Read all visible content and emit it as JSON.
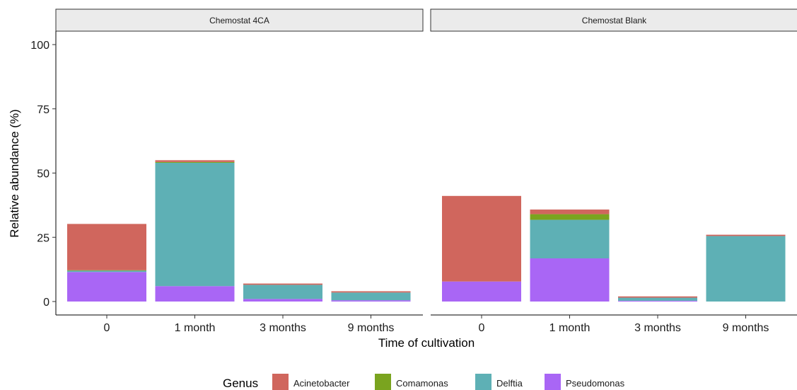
{
  "chart_data": {
    "type": "bar",
    "stacked": true,
    "xlabel": "Time of cultivation",
    "ylabel": "Relative abundance (%)",
    "ylim": [
      0,
      100
    ],
    "yticks": [
      0,
      25,
      50,
      75,
      100
    ],
    "grid": false,
    "legend_placement": "bottom",
    "legend_title": "Genus",
    "categories": [
      "0",
      "1 month",
      "3 months",
      "9 months"
    ],
    "series_names": [
      "Acinetobacter",
      "Comamonas",
      "Delftia",
      "Pseudomonas"
    ],
    "colors": {
      "Acinetobacter": "#d0665d",
      "Comamonas": "#7aa41f",
      "Delftia": "#5eb0b5",
      "Pseudomonas": "#a966f5"
    },
    "panels": [
      {
        "label": "Chemostat 4CA",
        "series": [
          {
            "name": "Pseudomonas",
            "values": [
              11.5,
              6.0,
              1.0,
              0.5
            ]
          },
          {
            "name": "Delftia",
            "values": [
              0.5,
              48.0,
              5.5,
              3.0
            ]
          },
          {
            "name": "Comamonas",
            "values": [
              0.2,
              0.3,
              0.0,
              0.0
            ]
          },
          {
            "name": "Acinetobacter",
            "values": [
              18.0,
              0.7,
              0.5,
              0.5
            ]
          }
        ]
      },
      {
        "label": "Chemostat Blank",
        "series": [
          {
            "name": "Pseudomonas",
            "values": [
              7.8,
              16.8,
              0.3,
              0.0
            ]
          },
          {
            "name": "Delftia",
            "values": [
              0.0,
              15.0,
              1.2,
              25.5
            ]
          },
          {
            "name": "Comamonas",
            "values": [
              0.0,
              2.2,
              0.0,
              0.0
            ]
          },
          {
            "name": "Acinetobacter",
            "values": [
              33.3,
              1.8,
              0.5,
              0.5
            ]
          }
        ]
      }
    ]
  }
}
